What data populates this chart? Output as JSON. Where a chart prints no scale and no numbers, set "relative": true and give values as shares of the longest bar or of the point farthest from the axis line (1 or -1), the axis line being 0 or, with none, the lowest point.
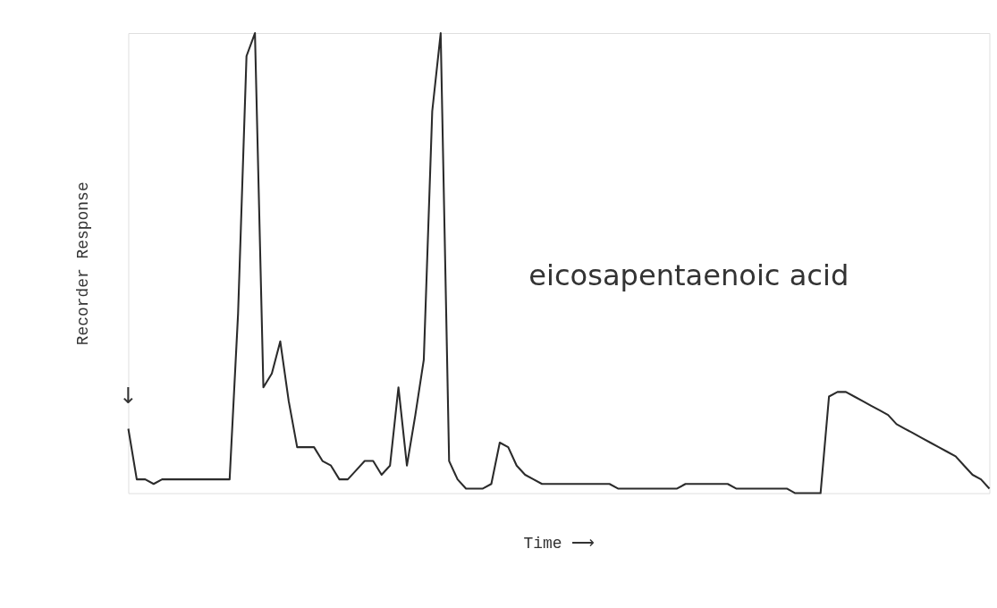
{
  "chart_data": {
    "type": "line",
    "relative": true,
    "xlabel": "Time ⟶",
    "ylabel": "Recorder Response",
    "color": "#2b2b2b",
    "categories": [
      null,
      null,
      null,
      null,
      null,
      null,
      null,
      null,
      null,
      null,
      null,
      null,
      null,
      null,
      null,
      null,
      null,
      null,
      null,
      null,
      null,
      null,
      null,
      null,
      null,
      null,
      null,
      null,
      null,
      null,
      null,
      null,
      null,
      null,
      null,
      null,
      null,
      null,
      null,
      null,
      null,
      null,
      null,
      null,
      null,
      null,
      null,
      null,
      null,
      null,
      null,
      null,
      null,
      null,
      null,
      null,
      null,
      null,
      null,
      null,
      null,
      null,
      null,
      null,
      null,
      null,
      null,
      null,
      null,
      null,
      null,
      null,
      null,
      null,
      null,
      null,
      null,
      null,
      null,
      null,
      null,
      null,
      null,
      null,
      null,
      null,
      null,
      null,
      null,
      null,
      null,
      null,
      null,
      null,
      null,
      null,
      null,
      null,
      null,
      null,
      null,
      null,
      null
    ],
    "values": [
      0.14,
      0.03,
      0.03,
      0.02,
      0.03,
      0.03,
      0.03,
      0.03,
      0.03,
      0.03,
      0.03,
      0.03,
      0.03,
      0.39,
      0.95,
      1.0,
      0.23,
      0.26,
      0.33,
      0.2,
      0.1,
      0.1,
      0.1,
      0.07,
      0.06,
      0.03,
      0.03,
      0.05,
      0.07,
      0.07,
      0.04,
      0.06,
      0.23,
      0.06,
      0.17,
      0.29,
      0.83,
      1.0,
      0.07,
      0.03,
      0.01,
      0.01,
      0.01,
      0.02,
      0.11,
      0.1,
      0.06,
      0.04,
      0.03,
      0.02,
      0.02,
      0.02,
      0.02,
      0.02,
      0.02,
      0.02,
      0.02,
      0.02,
      0.01,
      0.01,
      0.01,
      0.01,
      0.01,
      0.01,
      0.01,
      0.01,
      0.02,
      0.02,
      0.02,
      0.02,
      0.02,
      0.02,
      0.01,
      0.01,
      0.01,
      0.01,
      0.01,
      0.01,
      0.01,
      0.0,
      0.0,
      0.0,
      0.0,
      0.21,
      0.22,
      0.22,
      0.21,
      0.2,
      0.19,
      0.18,
      0.17,
      0.15,
      0.14,
      0.13,
      0.12,
      0.11,
      0.1,
      0.09,
      0.08,
      0.06,
      0.04,
      0.03,
      0.01
    ],
    "annotations": [
      "eicosapentaenoic  acid",
      "↓"
    ]
  }
}
